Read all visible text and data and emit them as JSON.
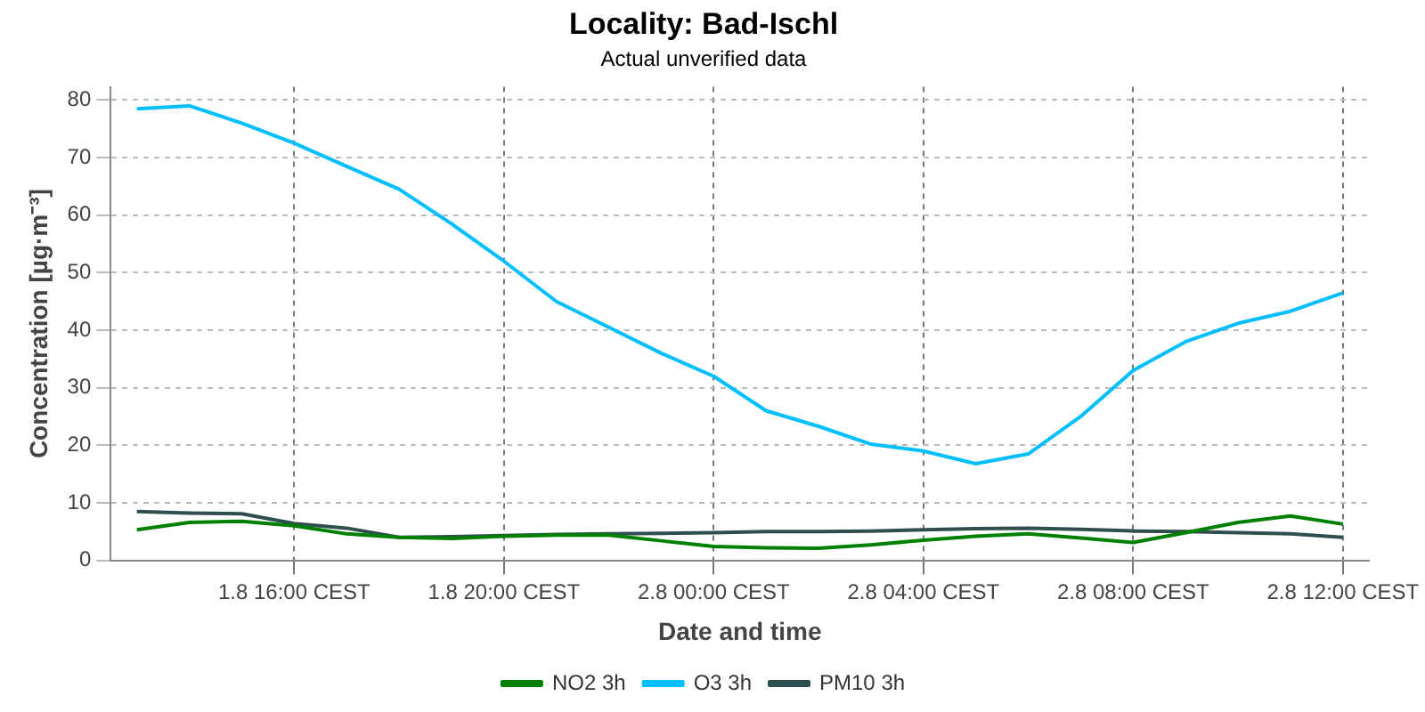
{
  "chart_data": {
    "type": "line",
    "title": "Locality: Bad-Ischl",
    "subtitle": "Actual unverified data",
    "xlabel": "Date and time",
    "ylabel": "Concentration [µg·m⁻³]",
    "categories": [
      null,
      null,
      null,
      "1.8 16:00 CEST",
      null,
      null,
      null,
      "1.8 20:00 CEST",
      null,
      null,
      null,
      "2.8 00:00 CEST",
      null,
      null,
      null,
      "2.8 04:00 CEST",
      null,
      null,
      null,
      "2.8 08:00 CEST",
      null,
      null,
      null,
      "2.8 12:00 CEST"
    ],
    "series": [
      {
        "name": "NO2 3h",
        "color": "#008000",
        "values": [
          5.3,
          6.6,
          6.8,
          6.0,
          4.6,
          4.0,
          3.8,
          4.2,
          4.4,
          4.4,
          3.4,
          2.4,
          2.2,
          2.1,
          2.7,
          3.5,
          4.2,
          4.6,
          3.9,
          3.1,
          4.8,
          6.6,
          7.7,
          6.3
        ]
      },
      {
        "name": "O3 3h",
        "color": "#00bfff",
        "values": [
          78.5,
          79,
          76,
          72.5,
          68.5,
          64.5,
          58.5,
          52,
          45,
          40.5,
          36,
          32,
          26,
          23.3,
          20.2,
          19,
          16.8,
          18.5,
          25,
          33,
          38,
          41.2,
          43.3,
          46.5
        ]
      },
      {
        "name": "PM10 3h",
        "color": "#2f4f4f",
        "values": [
          8.5,
          8.2,
          8.1,
          6.4,
          5.6,
          4.0,
          4.1,
          4.3,
          4.5,
          4.6,
          4.7,
          4.8,
          5.0,
          5.0,
          5.1,
          5.3,
          5.5,
          5.6,
          5.4,
          5.1,
          5.0,
          4.8,
          4.6,
          4.0
        ]
      }
    ],
    "ylim": [
      0,
      82.3
    ],
    "yticks": [
      0,
      10,
      20,
      30,
      40,
      50,
      60,
      70,
      80
    ],
    "grid": true,
    "legend": "bottom",
    "marker": "none",
    "line_style": "solid"
  }
}
